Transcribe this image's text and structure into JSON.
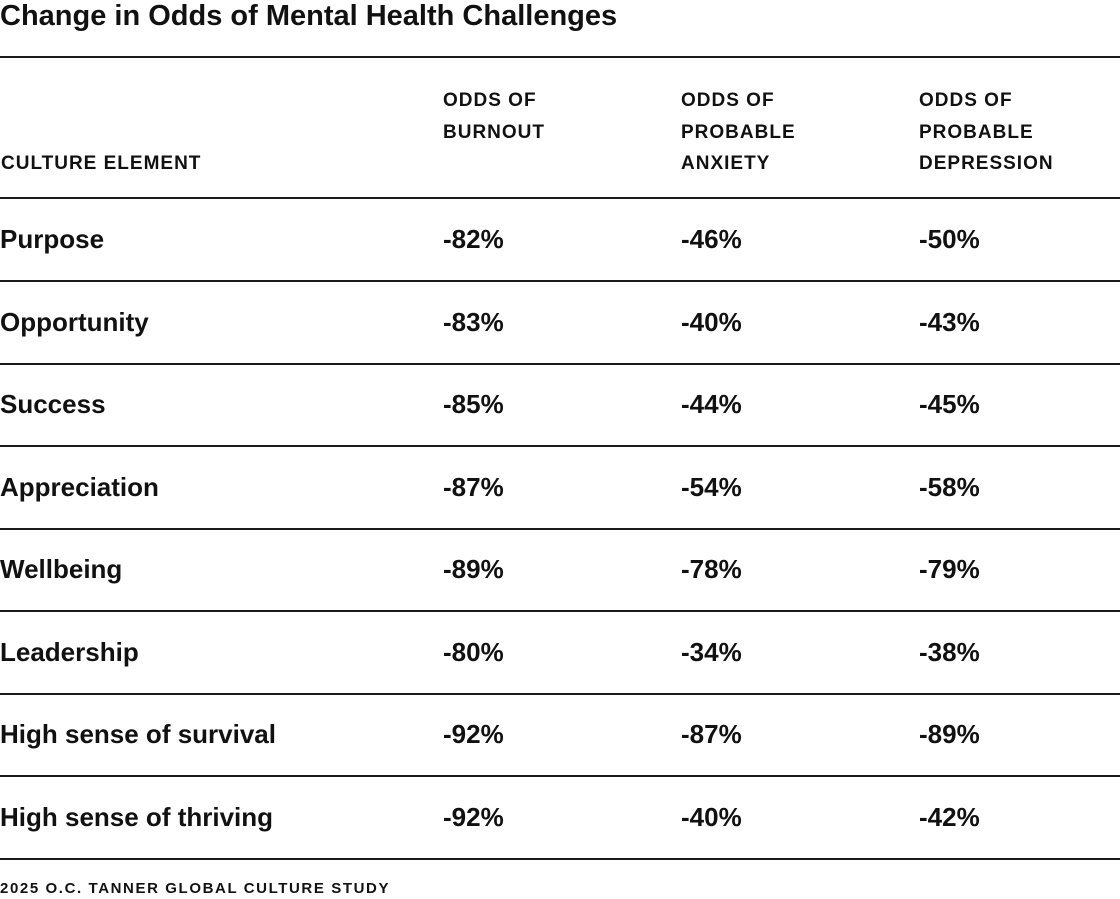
{
  "title": "Change in Odds of Mental Health Challenges",
  "chart_data": {
    "type": "table",
    "title": "Change in Odds of Mental Health Challenges",
    "columns": [
      {
        "lines": [
          "CULTURE ELEMENT"
        ]
      },
      {
        "lines": [
          "ODDS OF",
          "BURNOUT"
        ]
      },
      {
        "lines": [
          "ODDS OF",
          "PROBABLE",
          "ANXIETY"
        ]
      },
      {
        "lines": [
          "ODDS OF",
          "PROBABLE",
          "DEPRESSION"
        ]
      }
    ],
    "rows": [
      {
        "element": "Purpose",
        "burnout": "-82%",
        "anxiety": "-46%",
        "depression": "-50%"
      },
      {
        "element": "Opportunity",
        "burnout": "-83%",
        "anxiety": "-40%",
        "depression": "-43%"
      },
      {
        "element": "Success",
        "burnout": "-85%",
        "anxiety": "-44%",
        "depression": "-45%"
      },
      {
        "element": "Appreciation",
        "burnout": "-87%",
        "anxiety": "-54%",
        "depression": "-58%"
      },
      {
        "element": "Wellbeing",
        "burnout": "-89%",
        "anxiety": "-78%",
        "depression": "-79%"
      },
      {
        "element": "Leadership",
        "burnout": "-80%",
        "anxiety": "-34%",
        "depression": "-38%"
      },
      {
        "element": "High sense of survival",
        "burnout": "-92%",
        "anxiety": "-87%",
        "depression": "-89%"
      },
      {
        "element": "High sense of thriving",
        "burnout": "-92%",
        "anxiety": "-40%",
        "depression": "-42%"
      }
    ]
  },
  "footer": "2025 O.C. TANNER GLOBAL CULTURE STUDY"
}
